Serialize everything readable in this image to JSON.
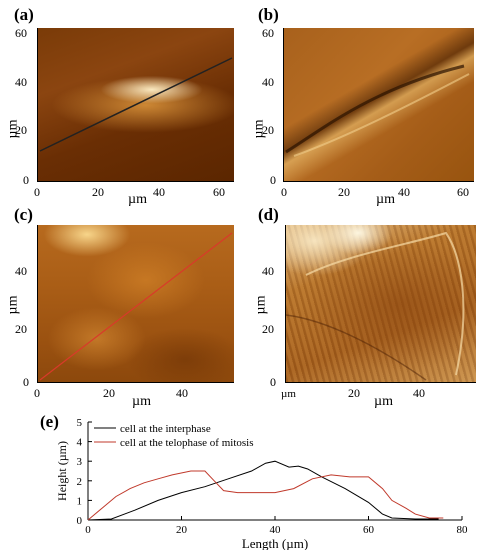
{
  "panels": {
    "a": {
      "label": "(a)",
      "yticks": [
        "60",
        "40",
        "20",
        "0"
      ],
      "xticks": [
        "0",
        "20",
        "40",
        "60"
      ],
      "ylabel": "µm",
      "xlabel": "µm"
    },
    "b": {
      "label": "(b)",
      "yticks": [
        "60",
        "40",
        "20",
        "0"
      ],
      "xticks": [
        "0",
        "20",
        "40",
        "60"
      ],
      "ylabel": "µm",
      "xlabel": "µm"
    },
    "c": {
      "label": "(c)",
      "yticks": [
        "40",
        "20",
        "0"
      ],
      "xticks": [
        "0",
        "20",
        "40"
      ],
      "ylabel": "µm",
      "xlabel": "µm"
    },
    "d": {
      "label": "(d)",
      "yticks": [
        "40",
        "20",
        "0"
      ],
      "xticks": [
        "20",
        "40"
      ],
      "x0label": "µm",
      "ylabel": "µm",
      "xlabel": "µm"
    }
  },
  "chart_e": {
    "label": "(e)"
  },
  "chart_data": {
    "type": "line",
    "xlabel": "Length (µm)",
    "ylabel": "Height (µm)",
    "xlim": [
      0,
      80
    ],
    "ylim": [
      0,
      5
    ],
    "xticks": [
      "0",
      "20",
      "40",
      "60",
      "80"
    ],
    "yticks": [
      "0",
      "1",
      "2",
      "3",
      "4",
      "5"
    ],
    "legend_position": "top-left",
    "series": [
      {
        "name": "cell at the interphase",
        "color": "#000000",
        "x": [
          0,
          5,
          10,
          15,
          20,
          25,
          30,
          35,
          38,
          40,
          43,
          45,
          47,
          50,
          55,
          60,
          63,
          65,
          70,
          75
        ],
        "y": [
          0,
          0.05,
          0.5,
          1.0,
          1.4,
          1.7,
          2.1,
          2.5,
          2.9,
          3.0,
          2.7,
          2.75,
          2.6,
          2.2,
          1.6,
          0.9,
          0.3,
          0.1,
          0.05,
          0.05
        ]
      },
      {
        "name": "cell at the telophase of mitosis",
        "color": "#c0392b",
        "x": [
          0,
          3,
          6,
          9,
          12,
          15,
          18,
          22,
          25,
          27,
          29,
          32,
          36,
          40,
          44,
          48,
          52,
          56,
          60,
          63,
          65,
          68,
          70,
          73,
          76
        ],
        "y": [
          0,
          0.6,
          1.2,
          1.6,
          1.9,
          2.1,
          2.3,
          2.5,
          2.5,
          2.0,
          1.5,
          1.4,
          1.4,
          1.4,
          1.6,
          2.1,
          2.3,
          2.2,
          2.2,
          1.6,
          1.0,
          0.6,
          0.3,
          0.1,
          0.1
        ]
      }
    ]
  }
}
